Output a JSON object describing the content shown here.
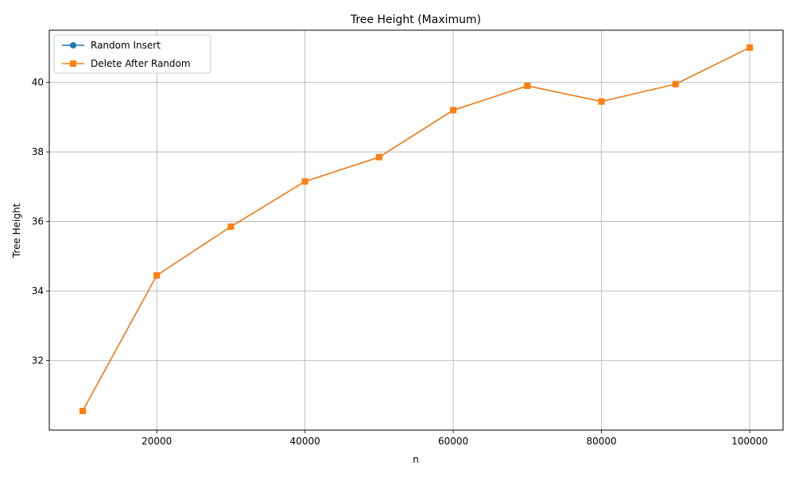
{
  "chart_data": {
    "type": "line",
    "title": "Tree Height (Maximum)",
    "xlabel": "n",
    "ylabel": "Tree Height",
    "x": [
      10000,
      20000,
      30000,
      40000,
      50000,
      60000,
      70000,
      80000,
      90000,
      100000
    ],
    "xlim": [
      5500,
      104500
    ],
    "ylim": [
      30.0,
      41.5
    ],
    "xticks": [
      20000,
      40000,
      60000,
      80000,
      100000
    ],
    "yticks": [
      32,
      34,
      36,
      38,
      40
    ],
    "xtick_labels": [
      "20000",
      "40000",
      "60000",
      "80000",
      "100000"
    ],
    "ytick_labels": [
      "32",
      "34",
      "36",
      "38",
      "40"
    ],
    "grid": true,
    "legend_position": "top-left",
    "series": [
      {
        "name": "Random Insert",
        "color": "#1f77b4",
        "marker": "circle",
        "values": [
          30.55,
          34.45,
          35.85,
          37.15,
          37.85,
          39.2,
          39.9,
          39.45,
          39.95,
          41.0
        ]
      },
      {
        "name": "Delete After Random",
        "color": "#ff7f0e",
        "marker": "square",
        "values": [
          30.55,
          34.45,
          35.85,
          37.15,
          37.85,
          39.2,
          39.9,
          39.45,
          39.95,
          41.0
        ]
      }
    ]
  }
}
